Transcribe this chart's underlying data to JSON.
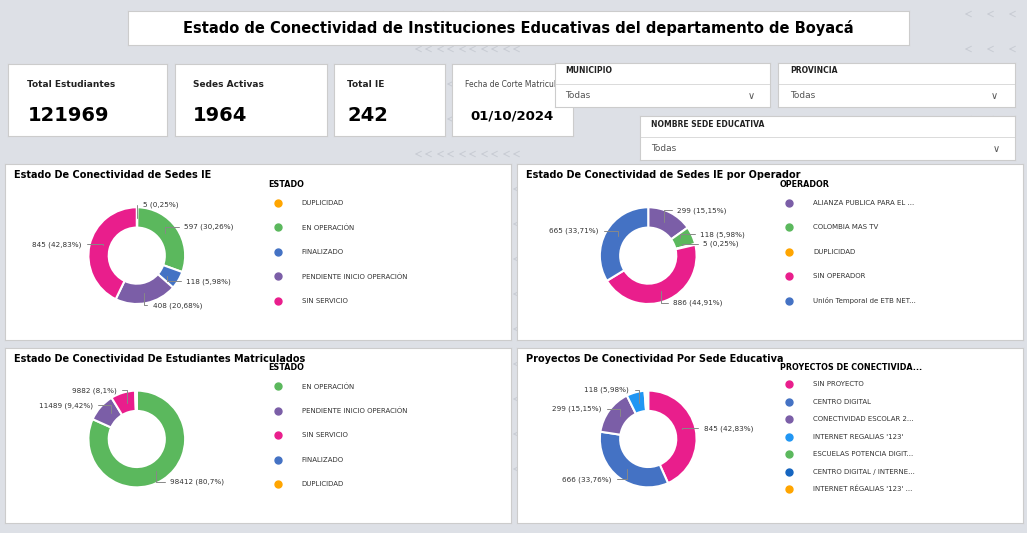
{
  "title": "Estado de Conectividad de Instituciones Educativas del departamento de Boyacá",
  "bg_color": "#dde0e6",
  "stats": [
    {
      "label": "Total Estudiantes",
      "value": "121969"
    },
    {
      "label": "Sedes Activas",
      "value": "1964"
    },
    {
      "label": "Total IE",
      "value": "242"
    }
  ],
  "fecha_label": "Fecha de Corte Matricula",
  "fecha_value": "01/10/2024",
  "chart1": {
    "title": "Estado De Conectividad de Sedes IE",
    "values": [
      5,
      597,
      118,
      408,
      845
    ],
    "labels": [
      "5 (0,25%)",
      "597 (30,26%)",
      "118 (5,98%)",
      "408 (20,68%)",
      "845 (42,83%)"
    ],
    "colors": [
      "#FFA500",
      "#5BB85D",
      "#4472C4",
      "#7B5EA7",
      "#E91E8C"
    ],
    "legend_title": "ESTADO",
    "legend_labels": [
      "DUPLICIDAD",
      "EN OPERACIÓN",
      "FINALIZADO",
      "PENDIENTE INICIO OPERACIÓN",
      "SIN SERVICIO"
    ]
  },
  "chart2": {
    "title": "Estado De Conectividad de Sedes IE por Operador",
    "values": [
      299,
      118,
      5,
      886,
      665
    ],
    "labels": [
      "299 (15,15%)",
      "118 (5,98%)",
      "5 (0,25%)",
      "886 (44,91%)",
      "665 (33,71%)"
    ],
    "colors": [
      "#7B5EA7",
      "#5BB85D",
      "#FFA500",
      "#E91E8C",
      "#4472C4"
    ],
    "legend_title": "OPERADOR",
    "legend_labels": [
      "ALIANZA PUBLICA PARA EL ...",
      "COLOMBIA MAS TV",
      "DUPLICIDAD",
      "SIN OPERADOR",
      "Unión Temporal de ETB NET..."
    ]
  },
  "chart3": {
    "title": "Estado De Conectividad De Estudiantes Matriculados",
    "values": [
      98412,
      11489,
      9882,
      450,
      200
    ],
    "labels": [
      "98412 (80,7%)",
      "11489 (9,42%)",
      "9882 (8,1%)",
      "",
      ""
    ],
    "colors": [
      "#5BB85D",
      "#7B5EA7",
      "#E91E8C",
      "#4472C4",
      "#FFA500"
    ],
    "legend_title": "ESTADO",
    "legend_labels": [
      "EN OPERACIÓN",
      "PENDIENTE INICIO OPERACIÓN",
      "SIN SERVICIO",
      "FINALIZADO",
      "DUPLICIDAD"
    ]
  },
  "chart4": {
    "title": "Proyectos De Conectividad Por Sede Educativa",
    "values": [
      845,
      666,
      299,
      118,
      10,
      8,
      6
    ],
    "labels": [
      "845 (42,83%)",
      "666 (33,76%)",
      "299 (15,15%)",
      "118 (5,98%)",
      "",
      "",
      ""
    ],
    "colors": [
      "#E91E8C",
      "#4472C4",
      "#7B5EA7",
      "#2196F3",
      "#5BB85D",
      "#1565C0",
      "#FFA500"
    ],
    "legend_title": "PROYECTOS DE CONECTIVIDA...",
    "legend_labels": [
      "SIN PROYECTO",
      "CENTRO DIGITAL",
      "CONECTIVIDAD ESCOLAR 2...",
      "INTERNET REGALIAS '123'",
      "ESCUELAS POTENCIA DIGIT...",
      "CENTRO DIGITAL / INTERNE...",
      "INTERNET RÉGALIAS '123' ..."
    ]
  },
  "arrow_color": "#c8ccd4",
  "panel_border": "#cccccc",
  "panel_bg": "#ffffff"
}
